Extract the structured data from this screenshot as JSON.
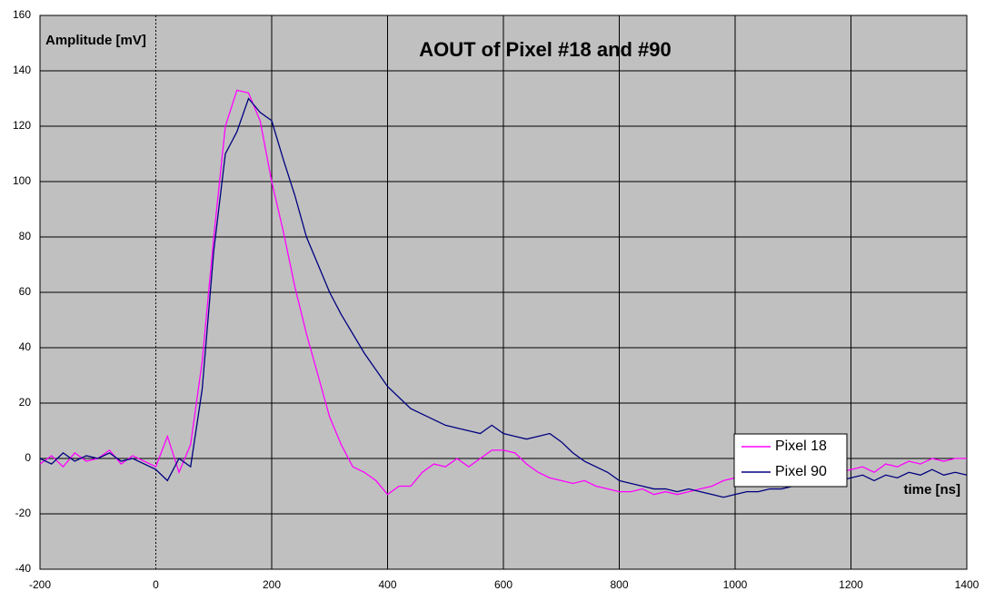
{
  "chart_data": {
    "type": "line",
    "title": "AOUT of Pixel #18 and #90",
    "y_label": "Amplitude [mV]",
    "x_label": "time [ns]",
    "x": [
      -200,
      -180,
      -160,
      -140,
      -120,
      -100,
      -80,
      -60,
      -40,
      -20,
      0,
      20,
      40,
      60,
      80,
      100,
      120,
      140,
      160,
      180,
      200,
      220,
      240,
      260,
      280,
      300,
      320,
      340,
      360,
      380,
      400,
      420,
      440,
      460,
      480,
      500,
      520,
      540,
      560,
      580,
      600,
      620,
      640,
      660,
      680,
      700,
      720,
      740,
      760,
      780,
      800,
      820,
      840,
      860,
      880,
      900,
      920,
      940,
      960,
      980,
      1000,
      1020,
      1040,
      1060,
      1080,
      1100,
      1120,
      1140,
      1160,
      1180,
      1200,
      1220,
      1240,
      1260,
      1280,
      1300,
      1320,
      1340,
      1360,
      1380,
      1400
    ],
    "series": [
      {
        "name": "Pixel 18",
        "color": "#ff00ff",
        "values": [
          -2,
          1,
          -3,
          2,
          -1,
          0,
          3,
          -2,
          1,
          -1,
          -3,
          8,
          -5,
          5,
          35,
          80,
          120,
          133,
          132,
          122,
          100,
          82,
          62,
          45,
          30,
          15,
          5,
          -3,
          -5,
          -8,
          -13,
          -10,
          -10,
          -5,
          -2,
          -3,
          0,
          -3,
          0,
          3,
          3,
          2,
          -2,
          -5,
          -7,
          -8,
          -9,
          -8,
          -10,
          -11,
          -12,
          -12,
          -11,
          -13,
          -12,
          -13,
          -12,
          -11,
          -10,
          -8,
          -7,
          -8,
          -6,
          -7,
          -6,
          -5,
          -4,
          -5,
          -3,
          -5,
          -4,
          -3,
          -5,
          -2,
          -3,
          -1,
          -2,
          0,
          -1,
          0,
          0
        ]
      },
      {
        "name": "Pixel 90",
        "color": "#000080",
        "values": [
          0,
          -2,
          2,
          -1,
          1,
          0,
          2,
          -1,
          0,
          -2,
          -4,
          -8,
          0,
          -3,
          25,
          75,
          110,
          118,
          130,
          125,
          122,
          108,
          95,
          80,
          70,
          60,
          52,
          45,
          38,
          32,
          26,
          22,
          18,
          16,
          14,
          12,
          11,
          10,
          9,
          12,
          9,
          8,
          7,
          8,
          9,
          6,
          2,
          -1,
          -3,
          -5,
          -8,
          -9,
          -10,
          -11,
          -11,
          -12,
          -11,
          -12,
          -13,
          -14,
          -13,
          -12,
          -12,
          -11,
          -11,
          -10,
          -10,
          -9,
          -10,
          -8,
          -7,
          -6,
          -8,
          -6,
          -7,
          -5,
          -6,
          -4,
          -6,
          -5,
          -6
        ]
      }
    ],
    "xlim": [
      -200,
      1400
    ],
    "xticks": [
      -200,
      0,
      200,
      400,
      600,
      800,
      1000,
      1200,
      1400
    ],
    "ylim": [
      -40,
      160
    ],
    "yticks": [
      -40,
      -20,
      0,
      20,
      40,
      60,
      80,
      100,
      120,
      140,
      160
    ],
    "grid": true,
    "legend": "right"
  }
}
